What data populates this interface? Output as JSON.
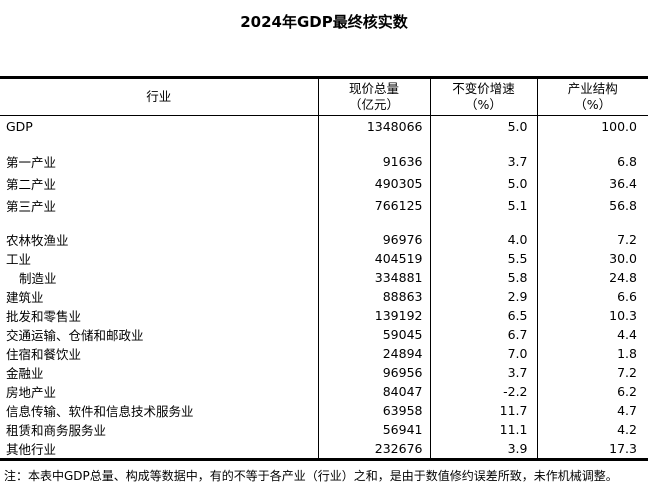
{
  "page": {
    "title": "2024年GDP最终核实数",
    "note": "注：本表中GDP总量、构成等数据中，有的不等于各产业（行业）之和，是由于数值修约误差所致，未作机械调整。"
  },
  "colors": {
    "text": "#000000",
    "border": "#000000",
    "background": "#ffffff"
  },
  "table": {
    "columns": [
      {
        "label": "行业",
        "unit": ""
      },
      {
        "label": "现价总量",
        "unit": "（亿元）"
      },
      {
        "label": "不变价增速",
        "unit": "（%）"
      },
      {
        "label": "产业结构",
        "unit": "（%）"
      }
    ],
    "rows": [
      {
        "label": "GDP",
        "values": [
          "1348066",
          "5.0",
          "100.0"
        ],
        "tall": true
      },
      {
        "spacer": true
      },
      {
        "label": "第一产业",
        "values": [
          "91636",
          "3.7",
          "6.8"
        ],
        "tall": true
      },
      {
        "label": "第二产业",
        "values": [
          "490305",
          "5.0",
          "36.4"
        ],
        "tall": true
      },
      {
        "label": "第三产业",
        "values": [
          "766125",
          "5.1",
          "56.8"
        ],
        "tall": true
      },
      {
        "spacer": true
      },
      {
        "label": "农林牧渔业",
        "values": [
          "96976",
          "4.0",
          "7.2"
        ]
      },
      {
        "label": "工业",
        "values": [
          "404519",
          "5.5",
          "30.0"
        ]
      },
      {
        "label": "制造业",
        "indent": true,
        "values": [
          "334881",
          "5.8",
          "24.8"
        ]
      },
      {
        "label": "建筑业",
        "values": [
          "88863",
          "2.9",
          "6.6"
        ]
      },
      {
        "label": "批发和零售业",
        "values": [
          "139192",
          "6.5",
          "10.3"
        ]
      },
      {
        "label": "交通运输、仓储和邮政业",
        "values": [
          "59045",
          "6.7",
          "4.4"
        ]
      },
      {
        "label": "住宿和餐饮业",
        "values": [
          "24894",
          "7.0",
          "1.8"
        ]
      },
      {
        "label": "金融业",
        "values": [
          "96956",
          "3.7",
          "7.2"
        ]
      },
      {
        "label": "房地产业",
        "values": [
          "84047",
          "-2.2",
          "6.2"
        ]
      },
      {
        "label": "信息传输、软件和信息技术服务业",
        "values": [
          "63958",
          "11.7",
          "4.7"
        ]
      },
      {
        "label": "租赁和商务服务业",
        "values": [
          "56941",
          "11.1",
          "4.2"
        ]
      },
      {
        "label": "其他行业",
        "values": [
          "232676",
          "3.9",
          "17.3"
        ]
      }
    ]
  }
}
